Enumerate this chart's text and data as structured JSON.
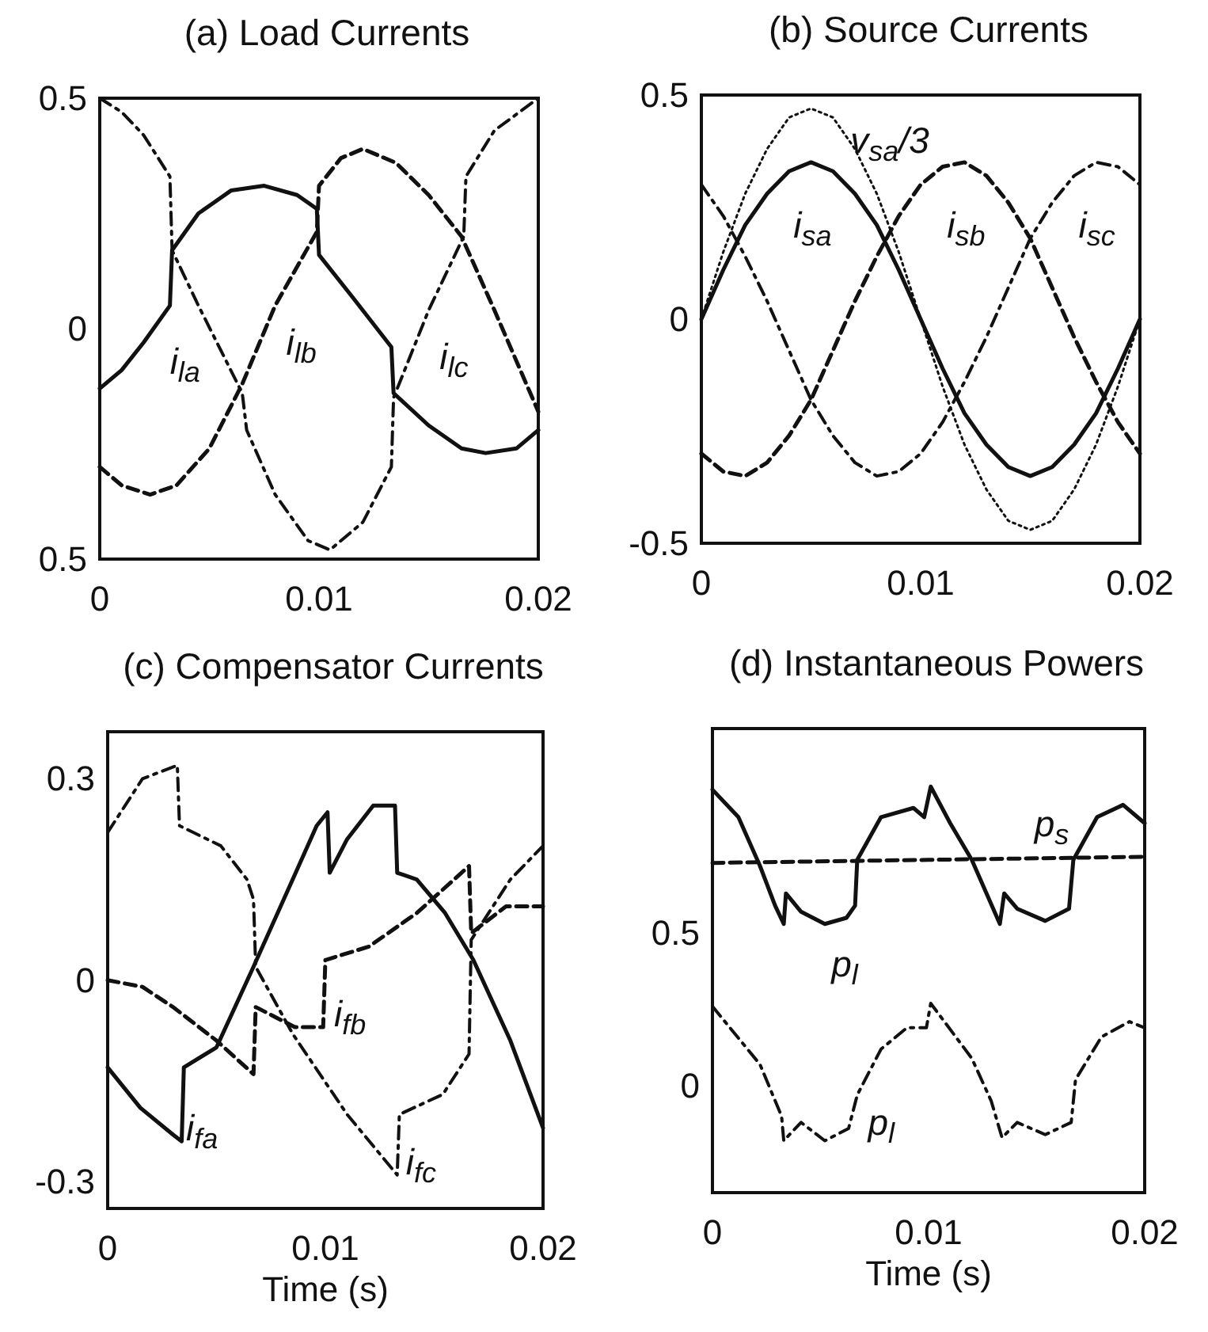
{
  "chart_data": [
    {
      "type": "line",
      "title": "(a) Load Currents",
      "xlim": [
        0,
        0.02
      ],
      "xticks": [
        0,
        0.01,
        0.02
      ],
      "ylim": [
        -0.5,
        0.5
      ],
      "yticks": [
        0.5,
        0,
        {
          "value": -0.5,
          "label": "0.5"
        }
      ],
      "series": [
        {
          "name": "i$_{la}$",
          "color": "#111111",
          "line_style": "solid",
          "x": [
            0,
            0.001,
            0.002,
            0.0032,
            0.0033,
            0.0045,
            0.006,
            0.0075,
            0.009,
            0.0099,
            0.01,
            0.0115,
            0.0133,
            0.0134,
            0.015,
            0.0165,
            0.0176,
            0.019,
            0.02
          ],
          "values": [
            -0.13,
            -0.09,
            -0.03,
            0.05,
            0.17,
            0.25,
            0.3,
            0.31,
            0.29,
            0.26,
            0.16,
            0.07,
            -0.04,
            -0.14,
            -0.21,
            -0.26,
            -0.27,
            -0.26,
            -0.22
          ]
        },
        {
          "name": "i$_{lb}$",
          "color": "#111111",
          "line_style": "dashed",
          "x": [
            0,
            0.001,
            0.0023,
            0.0035,
            0.005,
            0.0065,
            0.008,
            0.0099,
            0.01,
            0.011,
            0.012,
            0.0135,
            0.015,
            0.0165,
            0.018,
            0.02
          ],
          "values": [
            -0.3,
            -0.34,
            -0.36,
            -0.34,
            -0.26,
            -0.12,
            0.05,
            0.21,
            0.31,
            0.37,
            0.39,
            0.36,
            0.29,
            0.2,
            0.04,
            -0.18
          ]
        },
        {
          "name": "i$_{lc}$",
          "color": "#111111",
          "line_style": "dashdot",
          "x": [
            0,
            0.001,
            0.002,
            0.0032,
            0.0033,
            0.0045,
            0.0065,
            0.0067,
            0.008,
            0.0095,
            0.0105,
            0.012,
            0.0133,
            0.0134,
            0.015,
            0.0166,
            0.0167,
            0.018,
            0.02
          ],
          "values": [
            0.5,
            0.47,
            0.42,
            0.33,
            0.17,
            0.05,
            -0.14,
            -0.22,
            -0.36,
            -0.46,
            -0.48,
            -0.42,
            -0.3,
            -0.15,
            0.04,
            0.2,
            0.33,
            0.43,
            0.5
          ]
        }
      ],
      "legend": false
    },
    {
      "type": "line",
      "title": "(b) Source Currents",
      "xlim": [
        0,
        0.02
      ],
      "xticks": [
        0,
        0.01,
        0.02
      ],
      "ylim": [
        -0.5,
        0.5
      ],
      "yticks": [
        0.5,
        0,
        -0.5
      ],
      "x": [
        0,
        0.001,
        0.002,
        0.003,
        0.004,
        0.005,
        0.006,
        0.007,
        0.008,
        0.009,
        0.01,
        0.011,
        0.012,
        0.013,
        0.014,
        0.015,
        0.016,
        0.017,
        0.018,
        0.019,
        0.02
      ],
      "series": [
        {
          "name": "v$_{sa}$/3",
          "color": "#111111",
          "line_style": "dotted",
          "values": [
            0,
            0.15,
            0.28,
            0.38,
            0.45,
            0.47,
            0.45,
            0.38,
            0.28,
            0.15,
            0,
            -0.15,
            -0.28,
            -0.38,
            -0.45,
            -0.47,
            -0.45,
            -0.38,
            -0.28,
            -0.15,
            0
          ]
        },
        {
          "name": "i$_{sa}$",
          "color": "#111111",
          "line_style": "solid",
          "values": [
            0,
            0.11,
            0.21,
            0.28,
            0.33,
            0.35,
            0.33,
            0.28,
            0.21,
            0.11,
            0,
            -0.11,
            -0.21,
            -0.28,
            -0.33,
            -0.35,
            -0.33,
            -0.28,
            -0.21,
            -0.11,
            0
          ]
        },
        {
          "name": "i$_{sb}$",
          "color": "#111111",
          "line_style": "dashed",
          "values": [
            -0.3,
            -0.34,
            -0.35,
            -0.32,
            -0.26,
            -0.18,
            -0.07,
            0.04,
            0.14,
            0.23,
            0.3,
            0.34,
            0.35,
            0.32,
            0.26,
            0.18,
            0.07,
            -0.04,
            -0.14,
            -0.23,
            -0.3
          ]
        },
        {
          "name": "i$_{sc}$",
          "color": "#111111",
          "line_style": "dashdot",
          "values": [
            0.3,
            0.23,
            0.14,
            0.04,
            -0.07,
            -0.18,
            -0.26,
            -0.32,
            -0.35,
            -0.34,
            -0.3,
            -0.23,
            -0.14,
            -0.04,
            0.07,
            0.18,
            0.26,
            0.32,
            0.35,
            0.34,
            0.3
          ]
        }
      ],
      "legend": false
    },
    {
      "type": "line",
      "title": "(c) Compensator Currents",
      "xlabel": "Time (s)",
      "xlim": [
        0,
        0.02
      ],
      "xticks": [
        0,
        0.01,
        0.02
      ],
      "ylim": [
        -0.34,
        0.37
      ],
      "yticks": [
        -0.3,
        0,
        0.3
      ],
      "series": [
        {
          "name": "i$_{fa}$",
          "color": "#111111",
          "line_style": "solid",
          "x": [
            0,
            0.0015,
            0.003,
            0.0034,
            0.0035,
            0.005,
            0.0067,
            0.0085,
            0.0096,
            0.0101,
            0.0102,
            0.011,
            0.0122,
            0.0132,
            0.0133,
            0.0142,
            0.0155,
            0.0168,
            0.0185,
            0.02
          ],
          "values": [
            -0.13,
            -0.19,
            -0.23,
            -0.24,
            -0.13,
            -0.1,
            0.02,
            0.15,
            0.23,
            0.25,
            0.16,
            0.21,
            0.26,
            0.26,
            0.16,
            0.15,
            0.1,
            0.03,
            -0.09,
            -0.22
          ]
        },
        {
          "name": "i$_{fb}$",
          "color": "#111111",
          "line_style": "dashed",
          "x": [
            0,
            0.0016,
            0.003,
            0.005,
            0.0067,
            0.0068,
            0.0086,
            0.0099,
            0.01,
            0.012,
            0.0142,
            0.0166,
            0.0167,
            0.0183,
            0.02
          ],
          "values": [
            0,
            -0.01,
            -0.04,
            -0.09,
            -0.14,
            -0.04,
            -0.07,
            -0.07,
            0.03,
            0.05,
            0.1,
            0.17,
            0.07,
            0.11,
            0.11
          ]
        },
        {
          "name": "i$_{fc}$",
          "color": "#111111",
          "line_style": "dashdot",
          "x": [
            0,
            0.0016,
            0.0032,
            0.0033,
            0.0052,
            0.0064,
            0.0067,
            0.0068,
            0.0085,
            0.011,
            0.0133,
            0.0134,
            0.0154,
            0.0166,
            0.0167,
            0.0185,
            0.02
          ],
          "values": [
            0.22,
            0.3,
            0.32,
            0.23,
            0.2,
            0.15,
            0.12,
            0.02,
            -0.08,
            -0.2,
            -0.29,
            -0.2,
            -0.17,
            -0.11,
            0.06,
            0.15,
            0.2
          ]
        }
      ],
      "legend": false
    },
    {
      "type": "line",
      "title": "(d) Instantaneous Powers",
      "xlabel": "Time (s)",
      "xlim": [
        0,
        0.02
      ],
      "xticks": [
        0,
        0.01,
        0.02
      ],
      "ylim": [
        -0.35,
        1.17
      ],
      "yticks": [
        0,
        0.5
      ],
      "series": [
        {
          "name": "p$_{l}$",
          "color": "#111111",
          "line_style": "solid",
          "x": [
            0,
            0.0012,
            0.0022,
            0.0029,
            0.0033,
            0.0034,
            0.0041,
            0.0052,
            0.0062,
            0.0066,
            0.0067,
            0.0078,
            0.0093,
            0.0098,
            0.0101,
            0.011,
            0.012,
            0.0133,
            0.0135,
            0.0141,
            0.0154,
            0.0165,
            0.0167,
            0.0178,
            0.019,
            0.02
          ],
          "values": [
            0.97,
            0.88,
            0.72,
            0.59,
            0.53,
            0.63,
            0.57,
            0.53,
            0.55,
            0.59,
            0.74,
            0.88,
            0.91,
            0.88,
            0.98,
            0.86,
            0.74,
            0.53,
            0.63,
            0.58,
            0.54,
            0.58,
            0.74,
            0.88,
            0.92,
            0.86
          ]
        },
        {
          "name": "p$_{s}$",
          "color": "#111111",
          "line_style": "dashed",
          "x": [
            0,
            0.01,
            0.02
          ],
          "values": [
            0.73,
            0.74,
            0.75
          ]
        },
        {
          "name": "p$_{l}$",
          "color": "#111111",
          "line_style": "dashdot",
          "x": [
            0,
            0.0022,
            0.0032,
            0.0033,
            0.0041,
            0.0052,
            0.0063,
            0.0067,
            0.0078,
            0.009,
            0.0099,
            0.0101,
            0.012,
            0.0129,
            0.0134,
            0.0141,
            0.0154,
            0.0166,
            0.0168,
            0.018,
            0.0193,
            0.02
          ],
          "values": [
            0.26,
            0.07,
            -0.1,
            -0.18,
            -0.12,
            -0.18,
            -0.14,
            -0.03,
            0.12,
            0.19,
            0.19,
            0.27,
            0.09,
            -0.05,
            -0.17,
            -0.12,
            -0.16,
            -0.12,
            0.02,
            0.16,
            0.21,
            0.19
          ]
        }
      ],
      "legend": false
    }
  ]
}
